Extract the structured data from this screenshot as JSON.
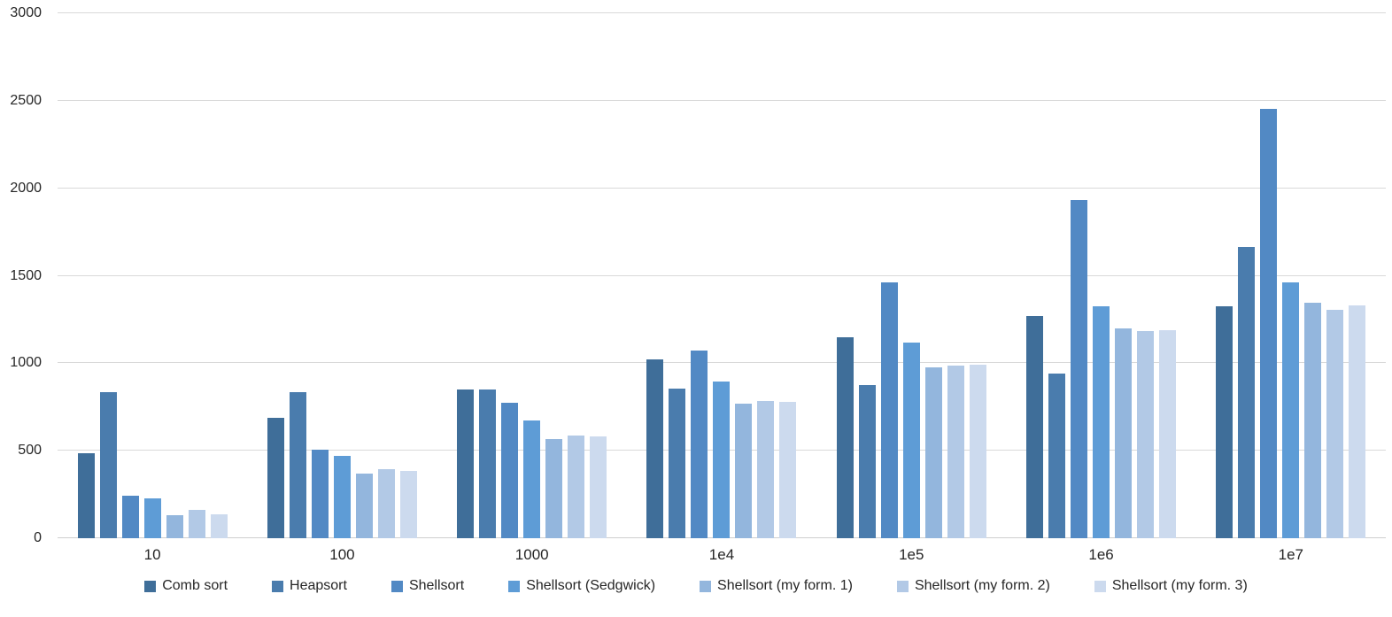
{
  "chart_data": {
    "type": "bar",
    "categories": [
      "10",
      "100",
      "1000",
      "1e4",
      "1e5",
      "1e6",
      "1e7"
    ],
    "series": [
      {
        "name": "Comb sort",
        "color": "#3F6E99",
        "values": [
          485,
          690,
          850,
          1020,
          1150,
          1270,
          1325
        ]
      },
      {
        "name": "Heapsort",
        "color": "#4A7CAD",
        "values": [
          835,
          835,
          850,
          855,
          875,
          940,
          1665
        ]
      },
      {
        "name": "Shellsort",
        "color": "#5289C4",
        "values": [
          245,
          505,
          775,
          1075,
          1460,
          1935,
          2455
        ]
      },
      {
        "name": "Shellsort (Sedgwick)",
        "color": "#5E9CD6",
        "values": [
          230,
          470,
          675,
          895,
          1120,
          1325,
          1460
        ]
      },
      {
        "name": "Shellsort (my form. 1)",
        "color": "#93B6DD",
        "values": [
          130,
          370,
          565,
          770,
          975,
          1200,
          1345
        ]
      },
      {
        "name": "Shellsort (my form. 2)",
        "color": "#B2C9E6",
        "values": [
          160,
          395,
          585,
          785,
          985,
          1185,
          1305
        ]
      },
      {
        "name": "Shellsort (my form. 3)",
        "color": "#CCDAEE",
        "values": [
          135,
          385,
          580,
          780,
          990,
          1190,
          1330
        ]
      }
    ],
    "xlabel": "",
    "ylabel": "",
    "ylim": [
      0,
      3000
    ],
    "yticks": [
      0,
      500,
      1000,
      1500,
      2000,
      2500,
      3000
    ],
    "grid": true,
    "legend_position": "bottom",
    "colors": {
      "background": "#FFFFFF",
      "gridline": "#D9D9D9",
      "text": "#262626"
    }
  }
}
